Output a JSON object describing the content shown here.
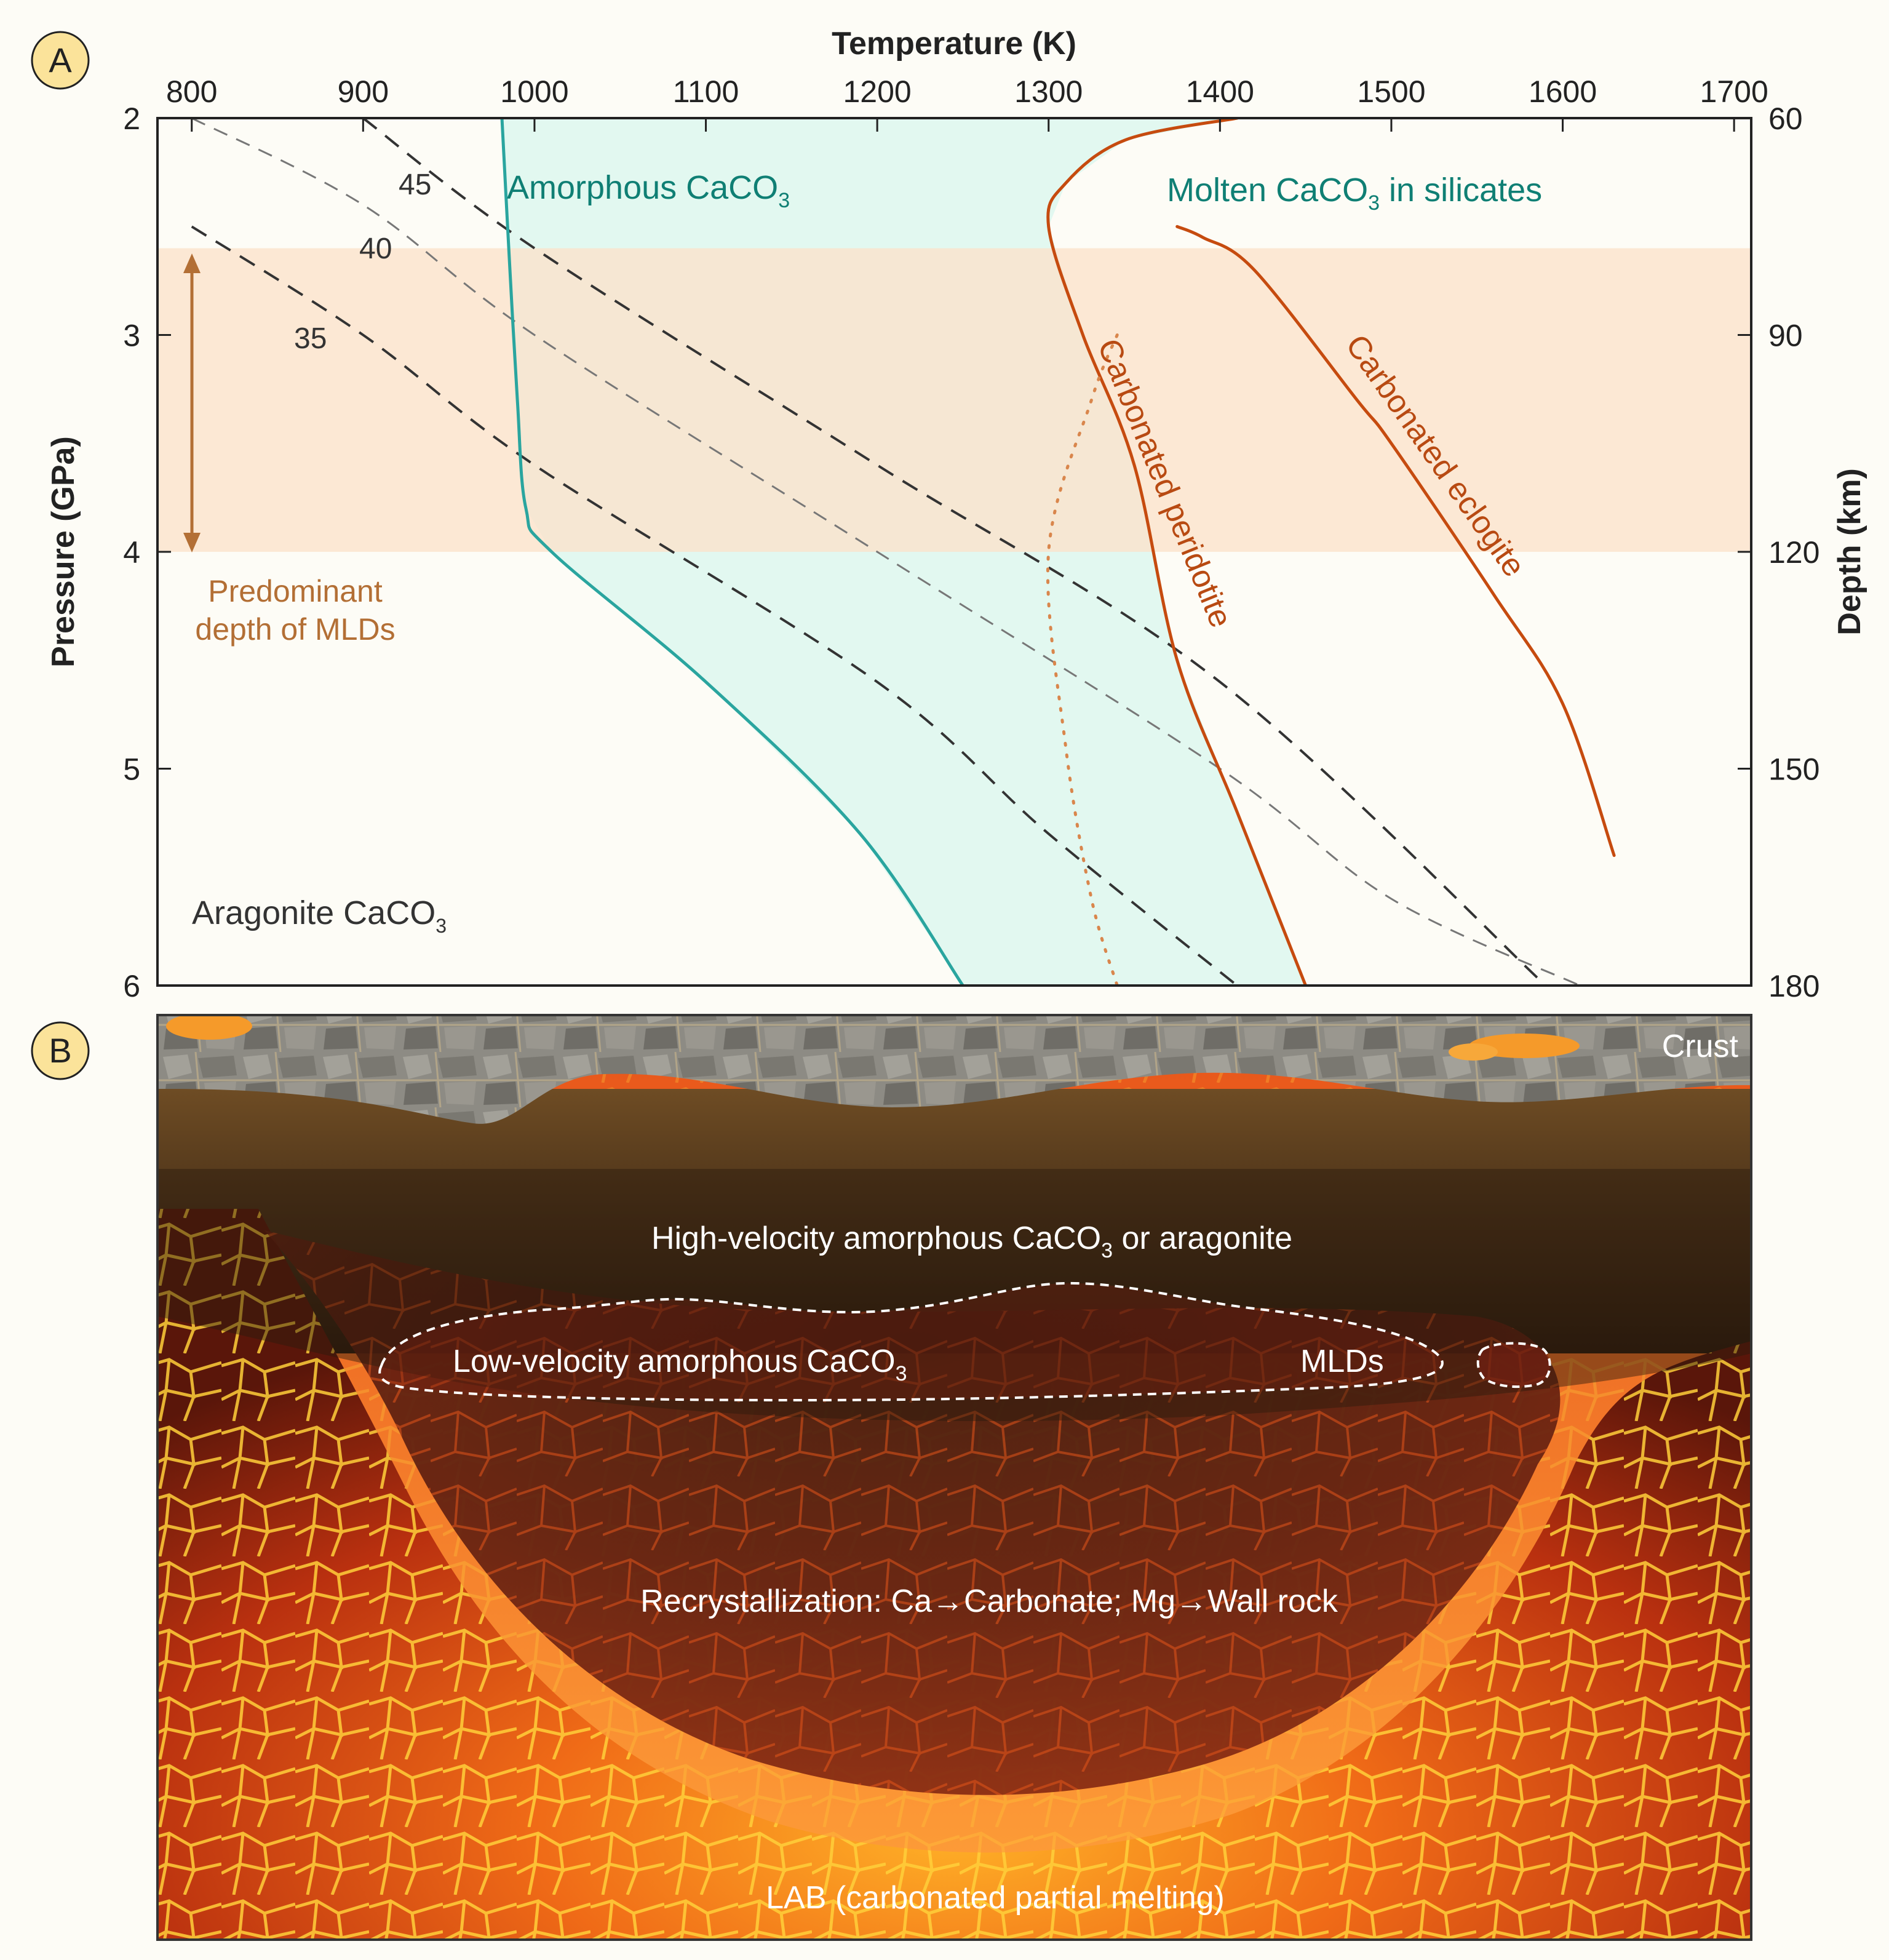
{
  "panel_a": {
    "badge": "A",
    "title_top": "Temperature (K)",
    "ylabel_left": "Pressure (GPa)",
    "ylabel_right": "Depth (km)",
    "x_ticks": [
      "800",
      "900",
      "1000",
      "1100",
      "1200",
      "1300",
      "1400",
      "1500",
      "1600",
      "1700"
    ],
    "y_ticks_left": [
      "2",
      "3",
      "4",
      "5",
      "6"
    ],
    "y_ticks_right": [
      "60",
      "90",
      "120",
      "150",
      "180"
    ],
    "labels": {
      "amorphous": "Amorphous CaCO",
      "amorphous_sub": "3",
      "molten": "Molten CaCO",
      "molten_sub": "3",
      "molten_rest": " in silicates",
      "aragonite": "Aragonite CaCO",
      "aragonite_sub": "3",
      "peridotite": "Carbonated peridotite",
      "eclogite": "Carbonated eclogite",
      "mlds_line1": "Predominant",
      "mlds_line2": "depth of MLDs",
      "iso45": "45",
      "iso40": "40",
      "iso35": "35"
    },
    "colors": {
      "amorphous_fill": "#e2f8f0",
      "mld_band": "#fbe2cc",
      "teal": "#2aa59f",
      "teal_text": "#0f7f74",
      "orange": "#c64b0f",
      "mld_text": "#b36f35"
    }
  },
  "chart_data": {
    "type": "line",
    "xlabel": "Temperature (K)",
    "ylabel": "Pressure (GPa)",
    "ylabel_right": "Depth (km)",
    "xlim": [
      780,
      1710
    ],
    "ylim": [
      6,
      2
    ],
    "x_ticks": [
      800,
      900,
      1000,
      1100,
      1200,
      1300,
      1400,
      1500,
      1600,
      1700
    ],
    "y_ticks": [
      2,
      3,
      4,
      5,
      6
    ],
    "y_ticks_right": [
      60,
      90,
      120,
      150,
      180
    ],
    "bands": [
      {
        "name": "Predominant depth of MLDs",
        "y_from": 2.6,
        "y_to": 4.0
      }
    ],
    "series": [
      {
        "name": "Amorphous CaCO3",
        "style": "teal-solid",
        "points": [
          [
            981,
            2.0
          ],
          [
            985,
            2.6
          ],
          [
            990,
            3.3
          ],
          [
            995,
            3.8
          ],
          [
            1010,
            4.0
          ],
          [
            1100,
            4.6
          ],
          [
            1190,
            5.3
          ],
          [
            1250,
            6.0
          ]
        ]
      },
      {
        "name": "Molten CaCO3 in silicates",
        "style": "orange-solid",
        "points": [
          [
            1410,
            2.0
          ],
          [
            1345,
            2.1
          ],
          [
            1310,
            2.3
          ],
          [
            1300,
            2.5
          ],
          [
            1320,
            3.0
          ],
          [
            1350,
            3.6
          ],
          [
            1375,
            4.5
          ],
          [
            1410,
            5.2
          ],
          [
            1450,
            6.0
          ]
        ]
      },
      {
        "name": "Carbonated peridotite",
        "style": "orange-dotted",
        "points": [
          [
            1340,
            3.0
          ],
          [
            1325,
            3.3
          ],
          [
            1300,
            4.0
          ],
          [
            1310,
            4.9
          ],
          [
            1325,
            5.6
          ],
          [
            1340,
            6.0
          ]
        ]
      },
      {
        "name": "Carbonated eclogite",
        "style": "orange-solid",
        "points": [
          [
            1375,
            2.5
          ],
          [
            1390,
            2.55
          ],
          [
            1420,
            2.7
          ],
          [
            1480,
            3.3
          ],
          [
            1500,
            3.5
          ],
          [
            1560,
            4.2
          ],
          [
            1600,
            4.7
          ],
          [
            1630,
            5.4
          ]
        ]
      },
      {
        "name": "45",
        "style": "dashed-dark",
        "points": [
          [
            900,
            2.0
          ],
          [
            1000,
            2.6
          ],
          [
            1200,
            3.6
          ],
          [
            1400,
            4.6
          ],
          [
            1590,
            6.0
          ]
        ]
      },
      {
        "name": "40",
        "style": "dashed-gray",
        "points": [
          [
            800,
            2.0
          ],
          [
            900,
            2.4
          ],
          [
            1000,
            3.0
          ],
          [
            1200,
            4.0
          ],
          [
            1400,
            5.0
          ],
          [
            1500,
            5.6
          ],
          [
            1610,
            6.0
          ]
        ]
      },
      {
        "name": "35",
        "style": "dashed-dark",
        "points": [
          [
            800,
            2.5
          ],
          [
            900,
            3.0
          ],
          [
            1000,
            3.6
          ],
          [
            1200,
            4.6
          ],
          [
            1300,
            5.3
          ],
          [
            1410,
            6.0
          ]
        ]
      }
    ]
  },
  "panel_b": {
    "badge": "B",
    "crust": "Crust",
    "high_velocity": "High-velocity amorphous CaCO",
    "high_velocity_sub": "3",
    "high_velocity_rest": " or aragonite",
    "low_velocity": "Low-velocity amorphous CaCO",
    "low_velocity_sub": "3",
    "mlds": "MLDs",
    "recrystallization": "Recrystallization: Ca→Carbonate; Mg→Wall rock",
    "lab": "LAB (carbonated partial melting)"
  }
}
